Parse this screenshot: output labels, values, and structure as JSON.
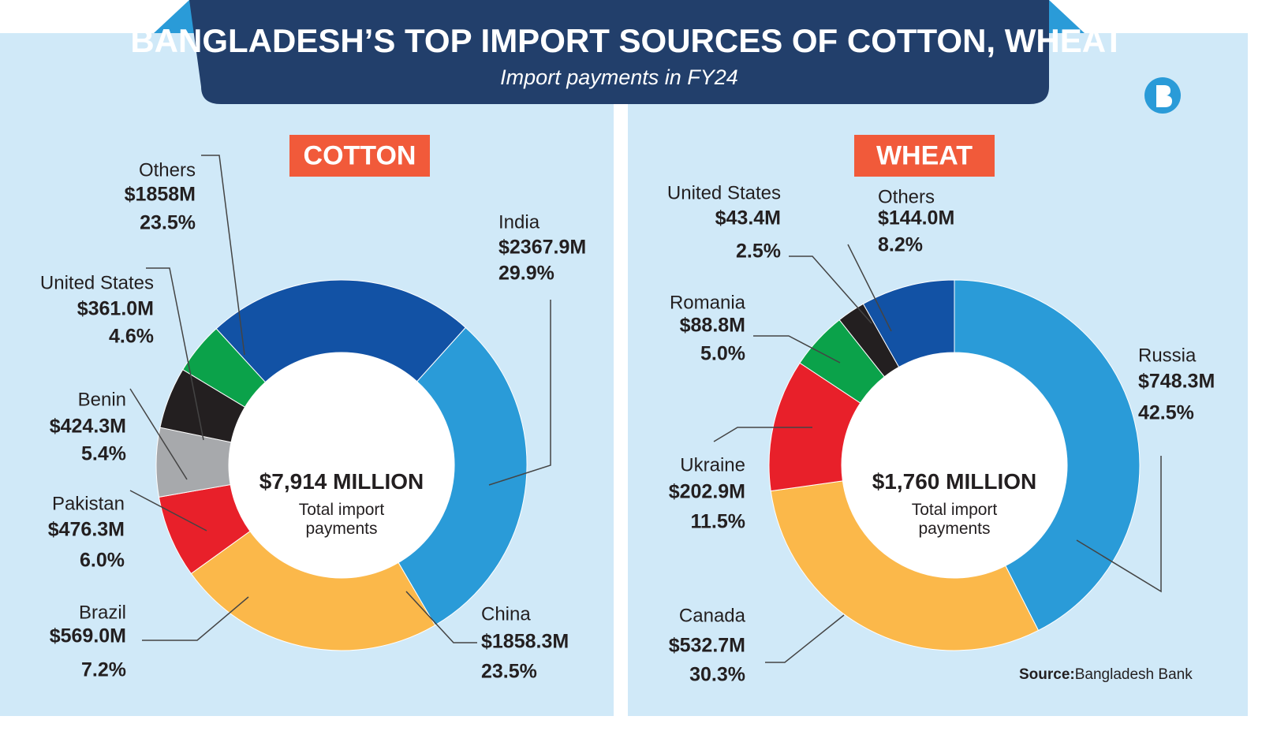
{
  "header": {
    "title": "BANGLADESH’S TOP IMPORT SOURCES OF COTTON, WHEAT",
    "subtitle": "Import payments in FY24"
  },
  "source": {
    "label": "Source:",
    "text": "Bangladesh Bank"
  },
  "chart_data": [
    {
      "type": "donut",
      "title": "COTTON",
      "center_title": "$7,914 MILLION",
      "center_subtitle": "Total import payments",
      "categories": [
        "India",
        "China",
        "Brazil",
        "Pakistan",
        "Benin",
        "United States",
        "Others"
      ],
      "values": [
        2367.9,
        1858.3,
        569.0,
        476.3,
        424.3,
        361.0,
        1858
      ],
      "value_labels": [
        "$2367.9M",
        "$1858.3M",
        "$569.0M",
        "$476.3M",
        "$424.3M",
        "$361.0M",
        "$1858M"
      ],
      "shares": [
        29.9,
        23.5,
        7.2,
        6.0,
        5.4,
        4.6,
        23.5
      ],
      "share_labels": [
        "29.9%",
        "23.5%",
        "7.2%",
        "6.0%",
        "5.4%",
        "4.6%",
        "23.5%"
      ],
      "colors": [
        "#2a9bd8",
        "#fbb84a",
        "#e8202a",
        "#a7a9ac",
        "#231f20",
        "#0ba24a",
        "#1252a5"
      ]
    },
    {
      "type": "donut",
      "title": "WHEAT",
      "center_title": "$1,760 MILLION",
      "center_subtitle": "Total import payments",
      "categories": [
        "Russia",
        "Canada",
        "Ukraine",
        "Romania",
        "United States",
        "Others"
      ],
      "values": [
        748.3,
        532.7,
        202.9,
        88.8,
        43.4,
        144.0
      ],
      "value_labels": [
        "$748.3M",
        "$532.7M",
        "$202.9M",
        "$88.8M",
        "$43.4M",
        "$144.0M"
      ],
      "shares": [
        42.5,
        30.3,
        11.5,
        5.0,
        2.5,
        8.2
      ],
      "share_labels": [
        "42.5%",
        "30.3%",
        "11.5%",
        "5.0%",
        "2.5%",
        "8.2%"
      ],
      "colors": [
        "#2a9bd8",
        "#fbb84a",
        "#e8202a",
        "#0ba24a",
        "#231f20",
        "#1252a5"
      ]
    }
  ]
}
